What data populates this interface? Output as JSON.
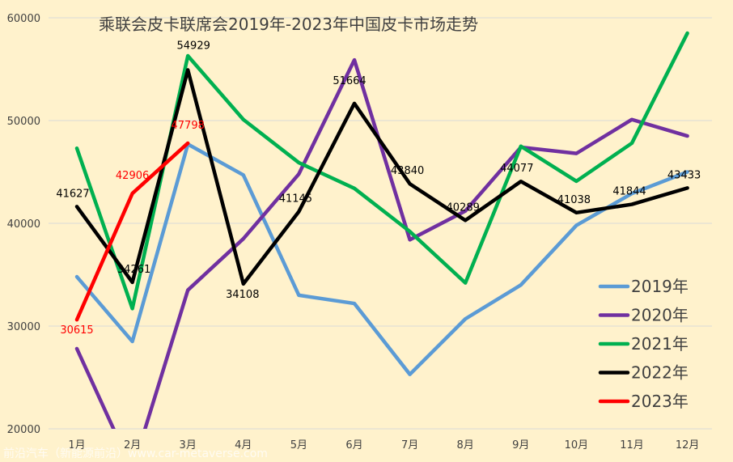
{
  "chart_data": {
    "type": "line",
    "title": "乘联会皮卡联席会2019年-2023年中国皮卡市场走势",
    "categories": [
      "1月",
      "2月",
      "3月",
      "4月",
      "5月",
      "6月",
      "7月",
      "8月",
      "9月",
      "10月",
      "11月",
      "12月"
    ],
    "ylim": [
      20000,
      60000
    ],
    "yticks": [
      20000,
      30000,
      40000,
      50000,
      60000
    ],
    "grid": true,
    "legend_position": "bottom-right",
    "series": [
      {
        "name": "2019年",
        "color": "#5b9bd5",
        "values": [
          34800,
          28500,
          47700,
          44700,
          33000,
          32200,
          25300,
          30700,
          34000,
          39800,
          42900,
          45000
        ]
      },
      {
        "name": "2020年",
        "color": "#7030a0",
        "values": [
          27800,
          16000,
          33500,
          38500,
          44800,
          55900,
          38400,
          41200,
          47400,
          46800,
          50100,
          48500
        ]
      },
      {
        "name": "2021年",
        "color": "#00b050",
        "values": [
          47300,
          31700,
          56300,
          50100,
          45900,
          43400,
          39200,
          34200,
          47500,
          44100,
          47800,
          58500
        ]
      },
      {
        "name": "2022年",
        "color": "#000000",
        "values": [
          41627,
          34261,
          54929,
          34108,
          41145,
          51664,
          43840,
          40289,
          44077,
          41038,
          41844,
          43433
        ],
        "labels": [
          "41627",
          "34261",
          "54929",
          "34108",
          "41145",
          "51664",
          "43840",
          "40289",
          "44077",
          "41038",
          "41844",
          "43433"
        ]
      },
      {
        "name": "2023年",
        "color": "#ff0000",
        "values": [
          30615,
          42906,
          47798,
          null,
          null,
          null,
          null,
          null,
          null,
          null,
          null,
          null
        ],
        "labels": [
          "30615",
          "42906",
          "47798"
        ]
      }
    ]
  },
  "watermark": "前沿汽车（新能源前沿）www.car-metaverse.com"
}
